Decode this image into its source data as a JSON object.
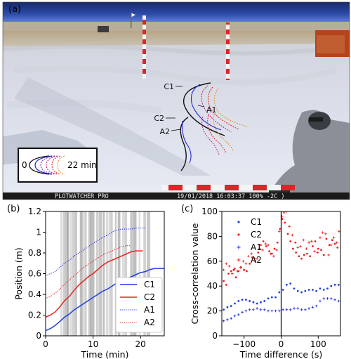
{
  "panels": {
    "a": {
      "panel_label": "(a)",
      "curve_labels": [
        "C1",
        "A1",
        "C2",
        "A2"
      ],
      "inset": {
        "start_label": "0",
        "end_label": "22 min"
      },
      "camera_brand": "PLOTWATCHER PRO",
      "timestamp": "19/01/2018 16:03:37 100% -2C )"
    },
    "b": {
      "panel_label": "(b)"
    },
    "c": {
      "panel_label": "(c)"
    }
  },
  "colors": {
    "C1": "#1f3fe0",
    "C2": "#e8221e",
    "A1": "#2430e0",
    "A2": "#e8221e",
    "shade": "#9a9a9a",
    "zero_line": "#000000"
  },
  "chart_data": [
    {
      "type": "line",
      "xlabel": "Time (min)",
      "ylabel": "Position (m)",
      "xlim": [
        0,
        25
      ],
      "ylim": [
        0,
        1.2
      ],
      "xticks": [
        0,
        10,
        20
      ],
      "yticks": [
        0.0,
        0.2,
        0.4,
        0.6,
        0.8,
        1.0,
        1.2
      ],
      "legend_position": "lower right",
      "shaded_bands_min": [
        3.1,
        3.6,
        4.1,
        4.5,
        5.0,
        5.6,
        6.3,
        7.2,
        7.6,
        8.3,
        9.0,
        9.4,
        10.0,
        10.6,
        11.2,
        12.1,
        12.7,
        13.4,
        14.6,
        15.2,
        16.1,
        16.8,
        17.8,
        18.4,
        19.6,
        20.6,
        21.3
      ],
      "series": [
        {
          "name": "C1",
          "style": "solid",
          "x": [
            0,
            1,
            2,
            3,
            4,
            5,
            6,
            7,
            8,
            9,
            10,
            11,
            12,
            13,
            14,
            15,
            16,
            17,
            18,
            19,
            20,
            21,
            22,
            23,
            24,
            25
          ],
          "y": [
            0.05,
            0.07,
            0.1,
            0.14,
            0.18,
            0.21,
            0.25,
            0.28,
            0.31,
            0.34,
            0.37,
            0.4,
            0.43,
            0.45,
            0.48,
            0.51,
            0.53,
            0.55,
            0.57,
            0.59,
            0.61,
            0.62,
            0.64,
            0.65,
            0.65,
            0.65
          ]
        },
        {
          "name": "C2",
          "style": "solid",
          "x": [
            0,
            1,
            2,
            3,
            4,
            5,
            6,
            7,
            8,
            9,
            10,
            11,
            12,
            13,
            14,
            15,
            16,
            17,
            18,
            19,
            20,
            20.5
          ],
          "y": [
            0.18,
            0.2,
            0.23,
            0.28,
            0.34,
            0.38,
            0.44,
            0.49,
            0.53,
            0.57,
            0.6,
            0.64,
            0.68,
            0.71,
            0.73,
            0.75,
            0.77,
            0.79,
            0.81,
            0.82,
            0.82,
            0.82
          ]
        },
        {
          "name": "A1",
          "style": "dotted",
          "x": [
            0,
            1,
            2,
            3,
            4,
            5,
            6,
            7,
            8,
            9,
            10,
            11,
            12,
            13,
            14,
            15,
            16,
            17,
            18,
            19,
            20,
            21
          ],
          "y": [
            0.58,
            0.6,
            0.62,
            0.66,
            0.7,
            0.73,
            0.77,
            0.8,
            0.83,
            0.86,
            0.89,
            0.92,
            0.95,
            0.97,
            1.0,
            1.02,
            1.03,
            1.03,
            1.03,
            1.04,
            1.04,
            1.04
          ]
        },
        {
          "name": "A2",
          "style": "dotted",
          "x": [
            0,
            1,
            2,
            3,
            4,
            5,
            6,
            7,
            8,
            9,
            10,
            11,
            12,
            13,
            14,
            15,
            16,
            17,
            18
          ],
          "y": [
            0.36,
            0.38,
            0.41,
            0.45,
            0.5,
            0.54,
            0.58,
            0.62,
            0.66,
            0.69,
            0.72,
            0.75,
            0.78,
            0.8,
            0.82,
            0.84,
            0.86,
            0.87,
            0.87
          ]
        }
      ]
    },
    {
      "type": "scatter",
      "xlabel": "Time difference (s)",
      "ylabel": "Cross-correlation value",
      "xlim": [
        -160,
        160
      ],
      "ylim": [
        0,
        100
      ],
      "xticks": [
        -100,
        0,
        100
      ],
      "yticks": [
        0,
        20,
        40,
        60,
        80,
        100
      ],
      "zero_line_x": 0,
      "legend_position": "upper left",
      "series": [
        {
          "name": "C1",
          "marker": "dot",
          "x": [
            -155,
            -145,
            -135,
            -125,
            -115,
            -105,
            -95,
            -85,
            -75,
            -65,
            -55,
            -45,
            -35,
            -25,
            -15,
            -5,
            5,
            15,
            25,
            35,
            45,
            55,
            65,
            75,
            85,
            95,
            105,
            115,
            125,
            135,
            145,
            155
          ],
          "y": [
            21,
            23,
            24,
            26,
            28,
            29,
            29,
            28,
            27,
            26,
            27,
            28,
            30,
            31,
            31,
            35,
            37,
            41,
            42,
            38,
            36,
            35,
            36,
            37,
            37,
            36,
            38,
            37,
            38,
            40,
            41,
            41
          ]
        },
        {
          "name": "C2",
          "marker": "dot",
          "x": [
            -155,
            -148,
            -142,
            -135,
            -128,
            -122,
            -115,
            -108,
            -100,
            -93,
            -85,
            -78,
            -70,
            -62,
            -55,
            -48,
            -40,
            -32,
            -25,
            -18,
            -10,
            -3,
            3,
            10,
            18,
            25,
            32,
            40,
            48,
            55,
            62,
            70,
            78,
            85,
            92,
            100,
            108,
            115,
            122,
            130,
            138,
            145,
            152
          ],
          "y": [
            44,
            41,
            50,
            52,
            53,
            47,
            52,
            55,
            53,
            52,
            58,
            63,
            60,
            67,
            73,
            76,
            72,
            68,
            66,
            70,
            75,
            86,
            94,
            91,
            82,
            76,
            70,
            67,
            64,
            62,
            65,
            66,
            64,
            72,
            76,
            70,
            69,
            65,
            78,
            73,
            77,
            74,
            71
          ]
        },
        {
          "name": "A1",
          "marker": "plus",
          "x": [
            -155,
            -145,
            -135,
            -125,
            -115,
            -105,
            -95,
            -85,
            -75,
            -65,
            -55,
            -45,
            -35,
            -25,
            -15,
            -5,
            5,
            15,
            25,
            35,
            45,
            55,
            65,
            75,
            85,
            95,
            105,
            115,
            125,
            135,
            145,
            155
          ],
          "y": [
            12,
            13,
            14,
            16,
            17,
            19,
            20,
            21,
            21,
            22,
            21,
            21,
            20,
            20,
            20,
            20,
            21,
            21,
            21,
            22,
            22,
            21,
            21,
            22,
            23,
            24,
            28,
            30,
            30,
            30,
            29,
            28
          ]
        },
        {
          "name": "A2",
          "marker": "plus",
          "x": [
            -155,
            -148,
            -140,
            -132,
            -125,
            -118,
            -110,
            -102,
            -95,
            -88,
            -80,
            -72,
            -65,
            -58,
            -50,
            -42,
            -35,
            -28,
            -20,
            -12,
            -5,
            2,
            8,
            15,
            22,
            30,
            38,
            45,
            52,
            60,
            68,
            75,
            82,
            90,
            98,
            105,
            112,
            120,
            128,
            135,
            142,
            150,
            156
          ],
          "y": [
            53,
            58,
            56,
            50,
            54,
            52,
            55,
            60,
            58,
            64,
            66,
            62,
            62,
            70,
            69,
            74,
            73,
            66,
            64,
            69,
            84,
            96,
            99,
            100,
            88,
            81,
            75,
            71,
            72,
            77,
            70,
            75,
            76,
            68,
            67,
            79,
            83,
            82,
            65,
            73,
            79,
            75,
            84
          ]
        }
      ]
    }
  ]
}
